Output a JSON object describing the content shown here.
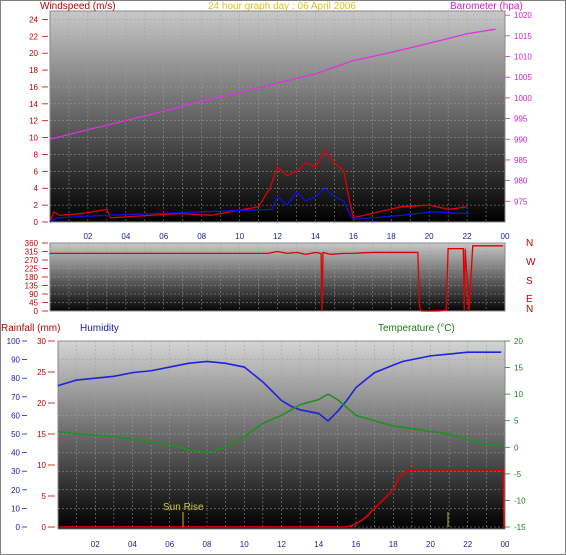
{
  "chart_data": [
    {
      "type": "line",
      "title": "24 hour graph day : 06 April 2006",
      "ylabel_left": "Windspeed (m/s)",
      "ylabel_right": "Barometer (hpa)",
      "ylim_left": [
        0,
        25
      ],
      "yticks_left": [
        "0",
        "2",
        "4",
        "6",
        "8",
        "10",
        "12",
        "14",
        "16",
        "18",
        "20",
        "22",
        "24"
      ],
      "ylim_right": [
        970,
        1021
      ],
      "yticks_right": [
        "975",
        "980",
        "985",
        "990",
        "995",
        "1000",
        "1005",
        "1010",
        "1015",
        "1020"
      ],
      "xticks": [
        "02",
        "04",
        "06",
        "08",
        "10",
        "12",
        "14",
        "16",
        "18",
        "20",
        "22",
        "00"
      ],
      "series": [
        {
          "color": "#dd33dd",
          "x": [
            0,
            2,
            4,
            6,
            8,
            10,
            12,
            14,
            16,
            18,
            20,
            22,
            23.5
          ],
          "y": [
            990,
            992.3,
            994.5,
            996.8,
            999.2,
            1001.3,
            1003.6,
            1005.8,
            1009,
            1011,
            1013.2,
            1015.5,
            1016.6
          ]
        },
        {
          "color": "#e00000",
          "x": [
            0,
            0.2,
            0.5,
            1.7,
            3.0,
            3.2,
            6.8,
            8.5,
            11.0,
            11.6,
            12.0,
            12.5,
            13.0,
            13.5,
            14.0,
            14.5,
            15.0,
            15.5,
            15.8,
            16.0,
            18.5,
            20.0,
            21.0,
            22.0
          ],
          "y": [
            0,
            1.2,
            0.8,
            1.0,
            1.5,
            0.5,
            1.0,
            0.8,
            1.8,
            4.0,
            6.5,
            5.5,
            6.0,
            7.0,
            6.5,
            8.5,
            7.0,
            6.0,
            2.5,
            0.5,
            1.8,
            2.0,
            1.5,
            1.8
          ]
        },
        {
          "color": "#1010e0",
          "x": [
            0,
            0.4,
            3.1,
            11.7,
            12.0,
            12.5,
            13.0,
            13.5,
            14.0,
            14.5,
            15.0,
            15.5,
            15.8,
            16.0,
            18.6,
            20.1,
            22.1
          ],
          "y": [
            0,
            0.5,
            0.8,
            1.5,
            3.0,
            2.0,
            3.5,
            2.5,
            3.0,
            4.0,
            3.0,
            2.5,
            1.0,
            0.3,
            0.8,
            1.2,
            1.0
          ]
        }
      ]
    },
    {
      "type": "line",
      "ylim": [
        0,
        360
      ],
      "yticks": [
        "0",
        "45",
        "90",
        "135",
        "180",
        "225",
        "270",
        "315",
        "360"
      ],
      "compass": [
        "N",
        "W",
        "S",
        "E",
        "N"
      ],
      "series": [
        {
          "color": "#e00000",
          "x": [
            0,
            11.5,
            12.0,
            12.5,
            13.0,
            13.5,
            14.0,
            14.3,
            14.35,
            14.4,
            14.8,
            15.5,
            16.0,
            16.5,
            17.0,
            19.4,
            19.5,
            19.6,
            20.0,
            20.5,
            20.9,
            21.0,
            21.8,
            21.85,
            21.9,
            22.1,
            22.3,
            23.9
          ],
          "y": [
            305,
            305,
            315,
            305,
            310,
            300,
            310,
            305,
            0,
            310,
            300,
            305,
            305,
            308,
            310,
            310,
            20,
            0,
            0,
            0,
            5,
            330,
            330,
            0,
            330,
            0,
            345,
            345
          ]
        }
      ]
    },
    {
      "type": "line",
      "ylabel_rain": "Rainfall (mm)",
      "ylabel_hum": "Humidity",
      "ylabel_temp": "Temperature (°C)",
      "ylim_hum": [
        0,
        100
      ],
      "yticks_hum": [
        "0",
        "10",
        "20",
        "30",
        "40",
        "50",
        "60",
        "70",
        "80",
        "90",
        "100"
      ],
      "ylim_rain": [
        0,
        30
      ],
      "yticks_rain": [
        "0",
        "5",
        "10",
        "15",
        "20",
        "25",
        "30"
      ],
      "ylim_temp": [
        -15,
        20
      ],
      "yticks_temp": [
        "-15",
        "-10",
        "-5",
        "0",
        "5",
        "10",
        "15",
        "20"
      ],
      "xticks": [
        "02",
        "04",
        "06",
        "08",
        "10",
        "12",
        "14",
        "16",
        "18",
        "20",
        "22",
        "00"
      ],
      "annotation": "Sun Rise",
      "series": [
        {
          "color": "#2020e0",
          "x": [
            0,
            1,
            2,
            3,
            4,
            5,
            6,
            7,
            8,
            9,
            10,
            11,
            11.5,
            12,
            12.5,
            13,
            13.5,
            14,
            14.5,
            15,
            15.5,
            16,
            16.5,
            17,
            17.5,
            18,
            18.5,
            19,
            20,
            21,
            22,
            23,
            23.8
          ],
          "y": [
            76,
            79,
            80,
            81,
            83,
            84,
            86,
            88,
            89,
            88,
            86,
            78,
            73,
            68,
            65,
            63,
            62,
            61,
            57,
            62,
            68,
            75,
            79,
            83,
            85,
            87,
            89,
            90,
            92,
            93,
            94,
            94,
            94
          ]
        },
        {
          "color": "#209020",
          "x": [
            0,
            1,
            2,
            3,
            4,
            5,
            6,
            7,
            8,
            9,
            10,
            11,
            12,
            12.5,
            13,
            13.5,
            14,
            14.5,
            15,
            15.5,
            16,
            17,
            18,
            19,
            20,
            21,
            22,
            23,
            23.8
          ],
          "y": [
            3.0,
            2.5,
            2.3,
            2.0,
            1.5,
            1.0,
            0.5,
            -0.5,
            -1.0,
            0.0,
            2.0,
            4.5,
            6.0,
            7.0,
            8.0,
            8.5,
            9.0,
            10.0,
            9.0,
            7.5,
            6.0,
            5.0,
            4.0,
            3.5,
            3.0,
            2.5,
            1.5,
            0.5,
            0.5
          ]
        },
        {
          "color": "#e00000",
          "x": [
            0,
            15.5,
            16,
            16.5,
            17,
            17.5,
            18,
            18.3,
            18.8,
            23.9,
            23.95
          ],
          "y": [
            0,
            0,
            0.5,
            1.5,
            3,
            4.5,
            6,
            8,
            9.2,
            9.2,
            0
          ]
        }
      ]
    }
  ]
}
